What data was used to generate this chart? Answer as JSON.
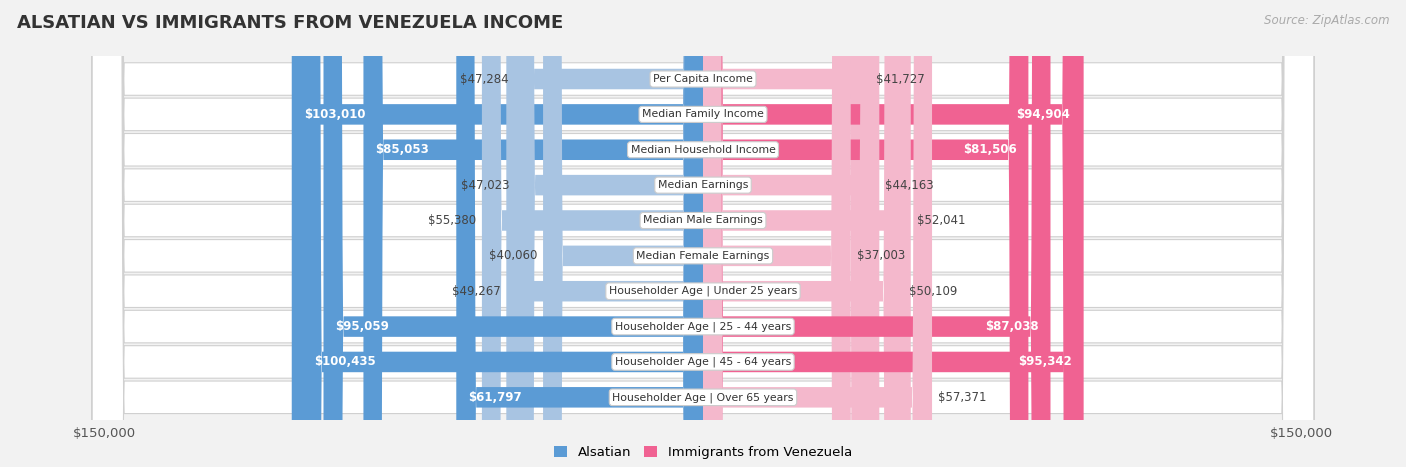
{
  "title": "ALSATIAN VS IMMIGRANTS FROM VENEZUELA INCOME",
  "source": "Source: ZipAtlas.com",
  "categories": [
    "Per Capita Income",
    "Median Family Income",
    "Median Household Income",
    "Median Earnings",
    "Median Male Earnings",
    "Median Female Earnings",
    "Householder Age | Under 25 years",
    "Householder Age | 25 - 44 years",
    "Householder Age | 45 - 64 years",
    "Householder Age | Over 65 years"
  ],
  "alsatian_values": [
    47284,
    103010,
    85053,
    47023,
    55380,
    40060,
    49267,
    95059,
    100435,
    61797
  ],
  "venezuela_values": [
    41727,
    94904,
    81506,
    44163,
    52041,
    37003,
    50109,
    87038,
    95342,
    57371
  ],
  "alsatian_labels": [
    "$47,284",
    "$103,010",
    "$85,053",
    "$47,023",
    "$55,380",
    "$40,060",
    "$49,267",
    "$95,059",
    "$100,435",
    "$61,797"
  ],
  "venezuela_labels": [
    "$41,727",
    "$94,904",
    "$81,506",
    "$44,163",
    "$52,041",
    "$37,003",
    "$50,109",
    "$87,038",
    "$95,342",
    "$57,371"
  ],
  "alsatian_color_light": "#a8c4e2",
  "alsatian_color_dark": "#5b9bd5",
  "venezuela_color_light": "#f4b8cc",
  "venezuela_color_dark": "#f06292",
  "max_value": 150000,
  "bar_height": 0.58,
  "background_color": "#f2f2f2",
  "row_bg_color": "#ffffff",
  "center_line_color": "#cccccc",
  "label_threshold": 60000
}
